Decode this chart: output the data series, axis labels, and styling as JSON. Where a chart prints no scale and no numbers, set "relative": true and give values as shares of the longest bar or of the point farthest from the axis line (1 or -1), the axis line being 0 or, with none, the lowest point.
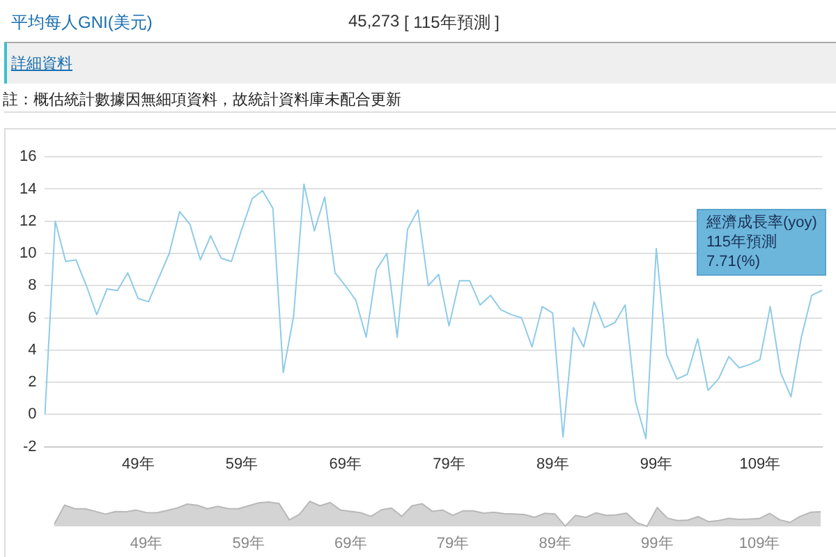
{
  "chart_data": [
    {
      "type": "line",
      "color": "#8fcbe8",
      "categories": [
        null,
        null,
        null,
        null,
        null,
        null,
        null,
        null,
        null,
        "49年",
        null,
        null,
        null,
        null,
        null,
        null,
        null,
        null,
        null,
        "59年",
        null,
        null,
        null,
        null,
        null,
        null,
        null,
        null,
        null,
        "69年",
        null,
        null,
        null,
        null,
        null,
        null,
        null,
        null,
        null,
        "79年",
        null,
        null,
        null,
        null,
        null,
        null,
        null,
        null,
        null,
        "89年",
        null,
        null,
        null,
        null,
        null,
        null,
        null,
        null,
        null,
        "99年",
        null,
        null,
        null,
        null,
        null,
        null,
        null,
        null,
        null,
        "109年",
        null,
        null,
        null,
        null,
        null,
        null
      ],
      "values": [
        0,
        12.0,
        9.5,
        9.6,
        8.0,
        6.2,
        7.8,
        7.7,
        8.8,
        7.2,
        7.0,
        8.5,
        10.0,
        12.6,
        11.8,
        9.6,
        11.1,
        9.7,
        9.5,
        11.5,
        13.4,
        13.9,
        12.8,
        2.6,
        6.1,
        14.3,
        11.4,
        13.5,
        8.8,
        8.0,
        7.1,
        4.8,
        9.0,
        10.0,
        4.8,
        11.5,
        12.7,
        8.0,
        8.7,
        5.5,
        8.3,
        8.3,
        6.8,
        7.4,
        6.5,
        6.2,
        6.0,
        4.2,
        6.7,
        6.3,
        -1.4,
        5.4,
        4.2,
        7.0,
        5.4,
        5.7,
        6.8,
        0.8,
        -1.5,
        10.3,
        3.7,
        2.2,
        2.5,
        4.7,
        1.5,
        2.2,
        3.6,
        2.9,
        3.1,
        3.4,
        6.7,
        2.6,
        1.1,
        4.8,
        7.4,
        7.71
      ],
      "ylim": [
        -2,
        16
      ],
      "yticks": [
        -2,
        0,
        2,
        4,
        6,
        8,
        10,
        12,
        14,
        16
      ],
      "grid": "y",
      "annotations": [
        "平均每人GNI(美元)",
        "45,273",
        "[ 115年預測 ]",
        "詳細資料",
        "註：概估統計數據因無細項資料，故統計資料庫未配合更新",
        "經濟成長率(yoy)\n115年預測\n7.71(%)"
      ]
    },
    {
      "type": "area",
      "color": "#b8b8b8",
      "relative": true,
      "categories": [
        null,
        null,
        null,
        null,
        null,
        null,
        null,
        null,
        null,
        "49年",
        null,
        null,
        null,
        null,
        null,
        null,
        null,
        null,
        null,
        "59年",
        null,
        null,
        null,
        null,
        null,
        null,
        null,
        null,
        null,
        "69年",
        null,
        null,
        null,
        null,
        null,
        null,
        null,
        null,
        null,
        "79年",
        null,
        null,
        null,
        null,
        null,
        null,
        null,
        null,
        null,
        "89年",
        null,
        null,
        null,
        null,
        null,
        null,
        null,
        null,
        null,
        "99年",
        null,
        null,
        null,
        null,
        null,
        null,
        null,
        null,
        null,
        "109年",
        null,
        null,
        null,
        null,
        null,
        null
      ],
      "values": [
        0.09,
        0.85,
        0.7,
        0.7,
        0.6,
        0.49,
        0.59,
        0.58,
        0.65,
        0.55,
        0.54,
        0.63,
        0.73,
        0.89,
        0.84,
        0.7,
        0.8,
        0.71,
        0.7,
        0.82,
        0.94,
        0.97,
        0.91,
        0.26,
        0.48,
        1,
        0.82,
        0.95,
        0.65,
        0.6,
        0.54,
        0.4,
        0.66,
        0.73,
        0.4,
        0.82,
        0.9,
        0.6,
        0.65,
        0.44,
        0.62,
        0.62,
        0.53,
        0.56,
        0.51,
        0.49,
        0.47,
        0.36,
        0.52,
        0.49,
        0.01,
        0.44,
        0.36,
        0.54,
        0.44,
        0.46,
        0.53,
        0.15,
        0,
        0.75,
        0.33,
        0.23,
        0.25,
        0.39,
        0.19,
        0.23,
        0.32,
        0.28,
        0.29,
        0.31,
        0.52,
        0.26,
        0.16,
        0.4,
        0.56,
        0.58
      ]
    }
  ]
}
